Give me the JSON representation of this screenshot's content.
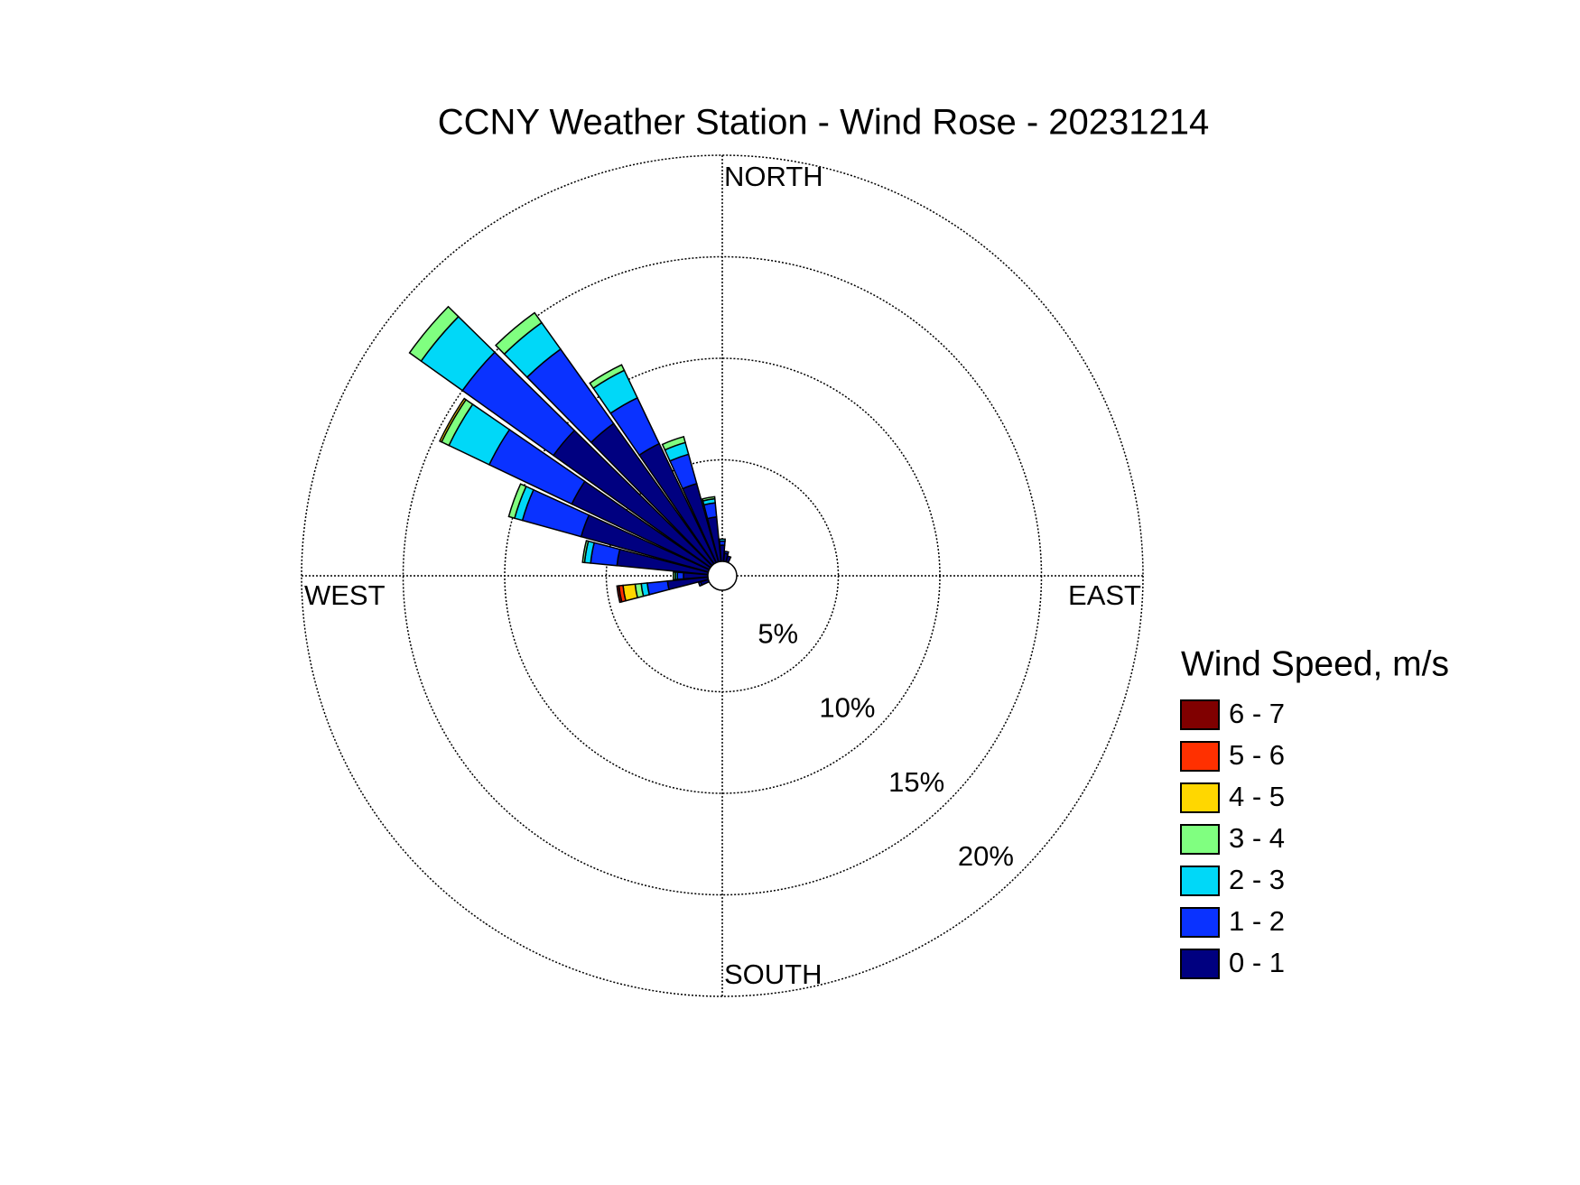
{
  "chart_data": {
    "type": "wind_rose",
    "title": "CCNY Weather Station - Wind Rose - 20231214",
    "x": [
      250,
      260,
      270,
      280,
      290,
      300,
      310,
      320,
      330,
      340,
      350,
      0,
      10,
      20
    ],
    "direction_labels": [
      {
        "value": 0,
        "label": "NORTH"
      },
      {
        "value": 90,
        "label": "EAST"
      },
      {
        "value": 180,
        "label": "SOUTH"
      },
      {
        "value": 270,
        "label": "WEST"
      }
    ],
    "rlim": [
      0,
      20
    ],
    "rticks": [
      {
        "value": 5,
        "label": "5%"
      },
      {
        "value": 10,
        "label": "10%"
      },
      {
        "value": 15,
        "label": "15%"
      },
      {
        "value": 20,
        "label": "20%"
      }
    ],
    "legend_title": "Wind Speed, m/s",
    "series": [
      {
        "name": "0 - 1",
        "color": "#000080",
        "values": [
          0.4,
          2.0,
          1.2,
          4.5,
          6.5,
          7.5,
          9.5,
          8.5,
          6.5,
          4.0,
          2.2,
          0.8,
          0.4,
          0.3
        ]
      },
      {
        "name": "1 - 2",
        "color": "#0a32ff",
        "values": [
          0.1,
          1.0,
          0.3,
          1.3,
          3.0,
          4.5,
          5.5,
          4.5,
          2.5,
          1.5,
          0.7,
          0.2,
          0.1,
          0
        ]
      },
      {
        "name": "2 - 3",
        "color": "#00d8f8",
        "values": [
          0,
          0.3,
          0.1,
          0.3,
          0.4,
          2.2,
          2.5,
          1.6,
          1.5,
          0.6,
          0.2,
          0.1,
          0,
          0
        ]
      },
      {
        "name": "3 - 4",
        "color": "#80ff80",
        "values": [
          0,
          0.3,
          0.1,
          0.1,
          0.3,
          0.4,
          0.7,
          0.6,
          0.3,
          0.3,
          0.1,
          0,
          0,
          0
        ]
      },
      {
        "name": "4 - 5",
        "color": "#ffd700",
        "values": [
          0,
          0.6,
          0,
          0,
          0,
          0.1,
          0,
          0,
          0,
          0,
          0,
          0,
          0,
          0
        ]
      },
      {
        "name": "5 - 6",
        "color": "#ff3000",
        "values": [
          0,
          0.2,
          0,
          0,
          0,
          0,
          0,
          0,
          0,
          0,
          0,
          0,
          0,
          0
        ]
      },
      {
        "name": "6 - 7",
        "color": "#800000",
        "values": [
          0,
          0.1,
          0,
          0,
          0,
          0,
          0,
          0,
          0,
          0,
          0,
          0,
          0,
          0
        ]
      }
    ]
  }
}
